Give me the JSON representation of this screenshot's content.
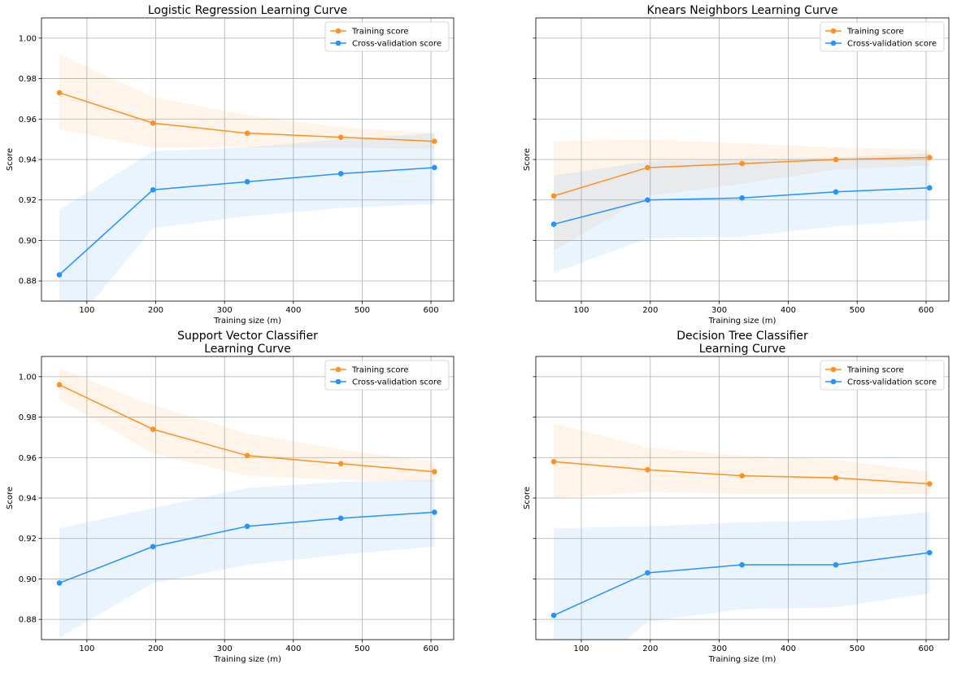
{
  "figure": {
    "colors": {
      "training": "#ff9124",
      "cross_validation": "#2492ff",
      "training_band": "#ff9124",
      "cv_band": "#2492ff",
      "grid": "#b0b0b0"
    }
  },
  "chart_data": [
    {
      "type": "line",
      "title_lines": [
        "Logistic Regression Learning Curve"
      ],
      "xlabel": "Training size (m)",
      "ylabel": "Score",
      "xlim": [
        34,
        633
      ],
      "ylim": [
        0.87,
        1.01
      ],
      "xticks": [
        100,
        200,
        300,
        400,
        500,
        600
      ],
      "yticks": [
        0.88,
        0.9,
        0.92,
        0.94,
        0.96,
        0.98,
        1.0
      ],
      "ytick_labels": [
        "0.88",
        "0.90",
        "0.92",
        "0.94",
        "0.96",
        "0.98",
        "1.00"
      ],
      "show_ytick_labels": true,
      "grid": true,
      "legend": "top-right",
      "x": [
        60,
        196,
        333,
        469,
        605
      ],
      "series": [
        {
          "name": "Training score",
          "color_key": "training",
          "values": [
            0.973,
            0.958,
            0.953,
            0.951,
            0.949
          ],
          "lower": [
            0.955,
            0.946,
            0.946,
            0.946,
            0.945
          ],
          "upper": [
            0.992,
            0.971,
            0.962,
            0.956,
            0.953
          ]
        },
        {
          "name": "Cross-validation score",
          "color_key": "cross_validation",
          "values": [
            0.883,
            0.925,
            0.929,
            0.933,
            0.936
          ],
          "lower": [
            0.85,
            0.906,
            0.912,
            0.916,
            0.918
          ],
          "upper": [
            0.915,
            0.944,
            0.946,
            0.95,
            0.953
          ]
        }
      ]
    },
    {
      "type": "line",
      "title_lines": [
        "Knears Neighbors Learning Curve"
      ],
      "xlabel": "Training size (m)",
      "ylabel": "Score",
      "xlim": [
        34,
        633
      ],
      "ylim": [
        0.87,
        1.01
      ],
      "xticks": [
        100,
        200,
        300,
        400,
        500,
        600
      ],
      "yticks": [
        0.88,
        0.9,
        0.92,
        0.94,
        0.96,
        0.98,
        1.0
      ],
      "ytick_labels": [
        "",
        "",
        "",
        "",
        "",
        "",
        ""
      ],
      "show_ytick_labels": false,
      "grid": true,
      "legend": "top-right",
      "x": [
        60,
        196,
        333,
        469,
        605
      ],
      "series": [
        {
          "name": "Training score",
          "color_key": "training",
          "values": [
            0.922,
            0.936,
            0.938,
            0.94,
            0.941
          ],
          "lower": [
            0.895,
            0.922,
            0.928,
            0.935,
            0.937
          ],
          "upper": [
            0.949,
            0.95,
            0.948,
            0.946,
            0.945
          ]
        },
        {
          "name": "Cross-validation score",
          "color_key": "cross_validation",
          "values": [
            0.908,
            0.92,
            0.921,
            0.924,
            0.926
          ],
          "lower": [
            0.884,
            0.901,
            0.902,
            0.907,
            0.91
          ],
          "upper": [
            0.932,
            0.939,
            0.94,
            0.941,
            0.943
          ]
        }
      ]
    },
    {
      "type": "line",
      "title_lines": [
        "Support Vector Classifier",
        "Learning Curve"
      ],
      "xlabel": "Training size (m)",
      "ylabel": "Score",
      "xlim": [
        34,
        633
      ],
      "ylim": [
        0.87,
        1.01
      ],
      "xticks": [
        100,
        200,
        300,
        400,
        500,
        600
      ],
      "yticks": [
        0.88,
        0.9,
        0.92,
        0.94,
        0.96,
        0.98,
        1.0
      ],
      "ytick_labels": [
        "0.88",
        "0.90",
        "0.92",
        "0.94",
        "0.96",
        "0.98",
        "1.00"
      ],
      "show_ytick_labels": true,
      "grid": true,
      "legend": "top-right",
      "x": [
        60,
        196,
        333,
        469,
        605
      ],
      "series": [
        {
          "name": "Training score",
          "color_key": "training",
          "values": [
            0.996,
            0.974,
            0.961,
            0.957,
            0.953
          ],
          "lower": [
            0.989,
            0.962,
            0.951,
            0.949,
            0.948
          ],
          "upper": [
            1.004,
            0.986,
            0.972,
            0.964,
            0.958
          ]
        },
        {
          "name": "Cross-validation score",
          "color_key": "cross_validation",
          "values": [
            0.898,
            0.916,
            0.926,
            0.93,
            0.933
          ],
          "lower": [
            0.871,
            0.898,
            0.907,
            0.912,
            0.916
          ],
          "upper": [
            0.925,
            0.935,
            0.945,
            0.948,
            0.949
          ]
        }
      ]
    },
    {
      "type": "line",
      "title_lines": [
        "Decision Tree Classifier",
        "Learning Curve"
      ],
      "xlabel": "Training size (m)",
      "ylabel": "Score",
      "xlim": [
        34,
        633
      ],
      "ylim": [
        0.87,
        1.01
      ],
      "xticks": [
        100,
        200,
        300,
        400,
        500,
        600
      ],
      "yticks": [
        0.88,
        0.9,
        0.92,
        0.94,
        0.96,
        0.98,
        1.0
      ],
      "ytick_labels": [
        "",
        "",
        "",
        "",
        "",
        "",
        ""
      ],
      "show_ytick_labels": false,
      "grid": true,
      "legend": "top-right",
      "x": [
        60,
        196,
        333,
        469,
        605
      ],
      "series": [
        {
          "name": "Training score",
          "color_key": "training",
          "values": [
            0.958,
            0.954,
            0.951,
            0.95,
            0.947
          ],
          "lower": [
            0.94,
            0.943,
            0.942,
            0.942,
            0.942
          ],
          "upper": [
            0.977,
            0.965,
            0.961,
            0.959,
            0.953
          ]
        },
        {
          "name": "Cross-validation score",
          "color_key": "cross_validation",
          "values": [
            0.882,
            0.903,
            0.907,
            0.907,
            0.913
          ],
          "lower": [
            0.838,
            0.879,
            0.885,
            0.886,
            0.893
          ],
          "upper": [
            0.925,
            0.926,
            0.928,
            0.929,
            0.933
          ]
        }
      ]
    }
  ]
}
